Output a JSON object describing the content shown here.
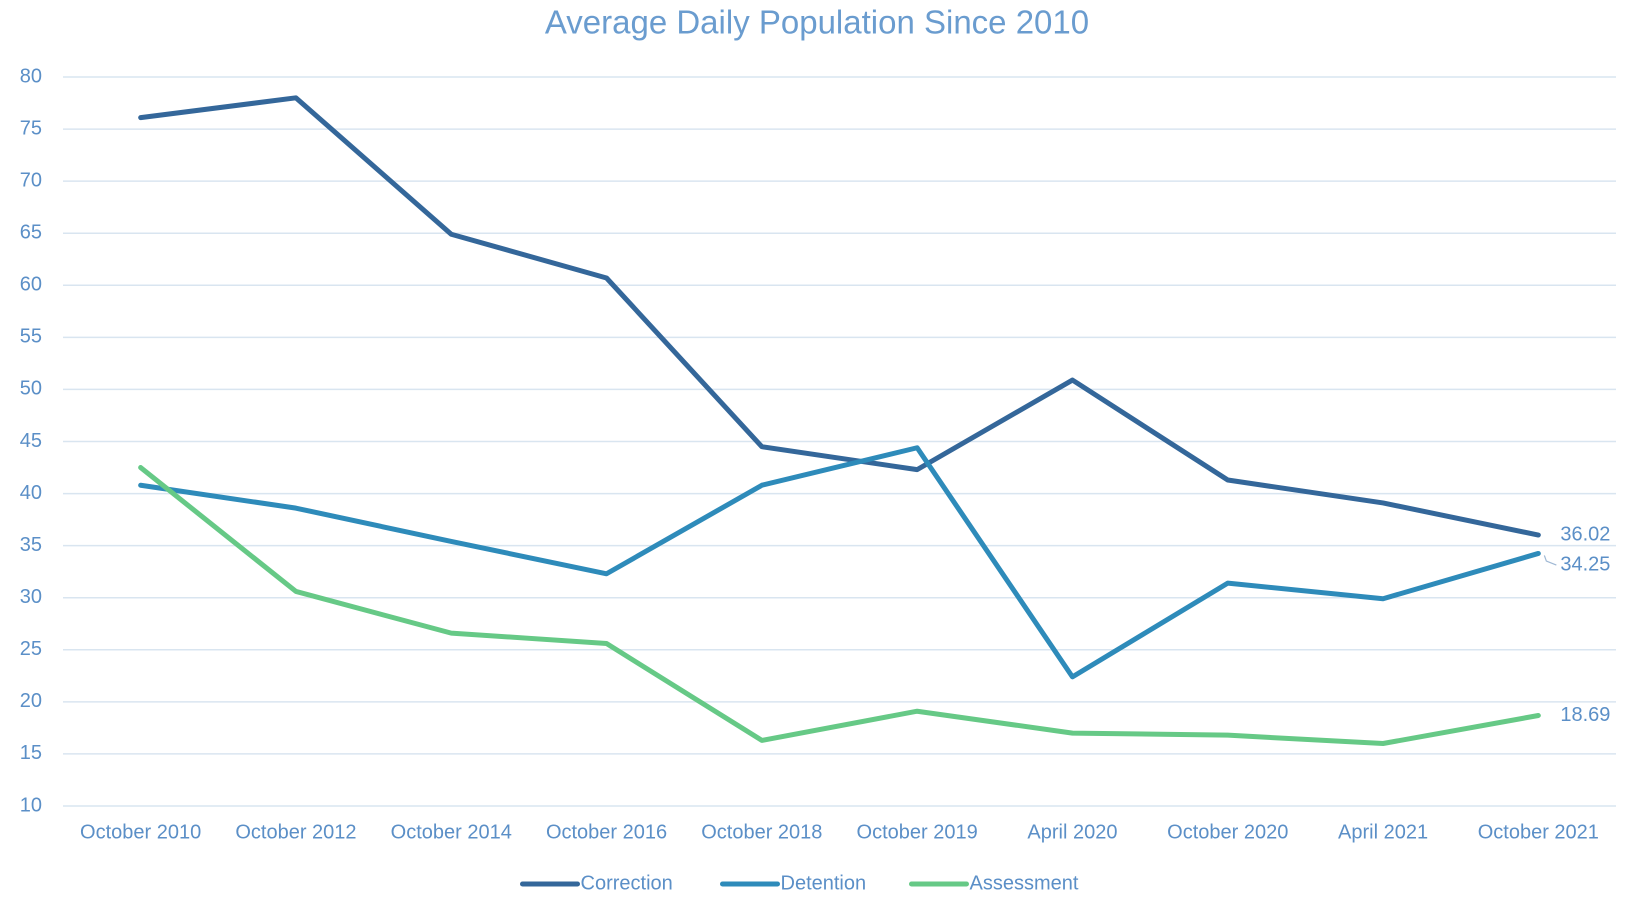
{
  "chart_data": {
    "type": "line",
    "title": "Average Daily Population Since 2010",
    "categories": [
      "October 2010",
      "October 2012",
      "October 2014",
      "October 2016",
      "October 2018",
      "October 2019",
      "April 2020",
      "October 2020",
      "April 2021",
      "October 2021"
    ],
    "series": [
      {
        "name": "Correction",
        "color": "#34679a",
        "values": [
          76.1,
          78,
          64.9,
          60.7,
          44.5,
          42.3,
          50.9,
          41.3,
          39.1,
          36.02
        ],
        "value_labels": [
          null,
          null,
          null,
          null,
          null,
          null,
          null,
          null,
          null,
          "36.02"
        ]
      },
      {
        "name": "Detention",
        "color": "#2e8bba",
        "values": [
          40.8,
          38.6,
          35.4,
          32.3,
          40.8,
          44.4,
          22.4,
          31.4,
          29.9,
          34.25
        ],
        "value_labels": [
          null,
          null,
          null,
          null,
          null,
          null,
          null,
          null,
          null,
          "34.25"
        ]
      },
      {
        "name": "Assessment",
        "color": "#66c986",
        "values": [
          42.5,
          30.6,
          26.6,
          25.6,
          16.3,
          19.1,
          17.0,
          16.8,
          16.0,
          18.69
        ],
        "value_labels": [
          null,
          null,
          null,
          null,
          null,
          null,
          null,
          null,
          null,
          "18.69"
        ]
      }
    ],
    "ylim": [
      10,
      80
    ],
    "yticks": [
      10,
      15,
      20,
      25,
      30,
      35,
      40,
      45,
      50,
      55,
      60,
      65,
      70,
      75,
      80
    ],
    "grid": true,
    "legend": "bottom"
  }
}
